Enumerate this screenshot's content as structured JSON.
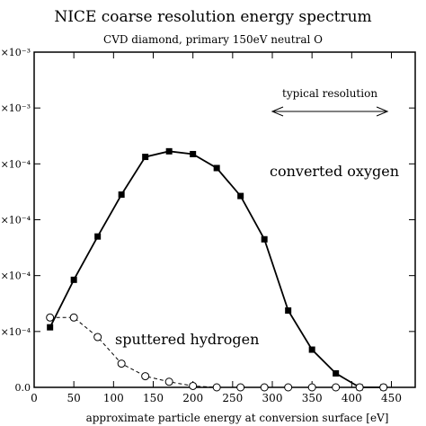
{
  "chart_data": {
    "type": "line",
    "title": "NICE coarse resolution energy spectrum",
    "subtitle": "CVD diamond, primary 150eV neutral O",
    "xlabel": "approximate particle energy at conversion surface [eV]",
    "ylabel": "",
    "xlim": [
      0,
      480
    ],
    "ylim": [
      0,
      0.0012
    ],
    "x_ticks": [
      0,
      50,
      100,
      150,
      200,
      250,
      300,
      350,
      400,
      450
    ],
    "x_tick_labels": [
      "0",
      "50",
      "100",
      "150",
      "200",
      "250",
      "300",
      "350",
      "400",
      "450"
    ],
    "y_ticks": [
      0,
      0.0002,
      0.0004,
      0.0006,
      0.0008,
      0.001,
      0.0012
    ],
    "y_tick_labels": [
      "0.0",
      "×10⁻⁴",
      "×10⁻⁴",
      "×10⁻⁴",
      "×10⁻⁴",
      "×10⁻³",
      "×10⁻³"
    ],
    "grid": false,
    "series": [
      {
        "name": "converted oxygen",
        "style": "solid",
        "marker": "filled-square",
        "x": [
          20,
          50,
          80,
          110,
          140,
          170,
          200,
          230,
          260,
          290,
          320,
          350,
          380,
          410,
          440
        ],
        "y": [
          0.000215,
          0.000385,
          0.00054,
          0.00069,
          0.000825,
          0.000845,
          0.000835,
          0.000785,
          0.000685,
          0.00053,
          0.000275,
          0.000135,
          5e-05,
          0.0,
          0.0
        ]
      },
      {
        "name": "sputtered hydrogen",
        "style": "dashed",
        "marker": "open-circle",
        "x": [
          20,
          50,
          80,
          110,
          140,
          170,
          200,
          230,
          260,
          290,
          320,
          350,
          380,
          410,
          440
        ],
        "y": [
          0.00025,
          0.00025,
          0.00018,
          8.5e-05,
          4e-05,
          2e-05,
          5e-06,
          0.0,
          0.0,
          0.0,
          0.0,
          0.0,
          0.0,
          0.0,
          0.0
        ]
      }
    ],
    "annotations": [
      {
        "text": "typical resolution",
        "type": "double-arrow",
        "x_from": 300,
        "x_to": 445,
        "y": 0.001
      }
    ]
  }
}
